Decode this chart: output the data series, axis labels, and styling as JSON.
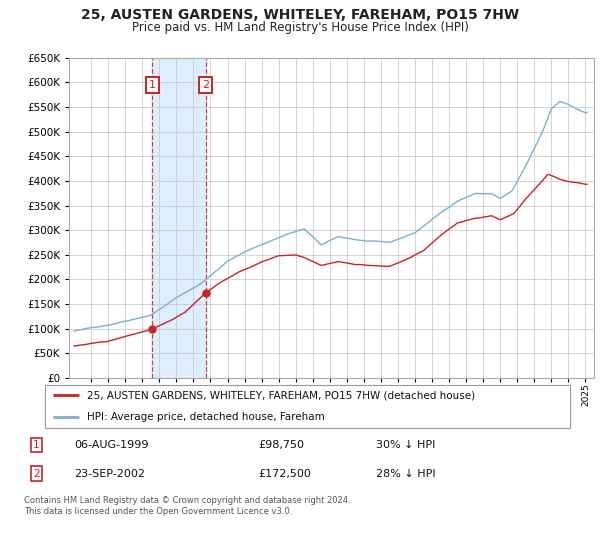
{
  "title": "25, AUSTEN GARDENS, WHITELEY, FAREHAM, PO15 7HW",
  "subtitle": "Price paid vs. HM Land Registry's House Price Index (HPI)",
  "property_label": "25, AUSTEN GARDENS, WHITELEY, FAREHAM, PO15 7HW (detached house)",
  "hpi_label": "HPI: Average price, detached house, Fareham",
  "purchase1_date": 1999.59,
  "purchase1_price": 98750,
  "purchase2_date": 2002.72,
  "purchase2_price": 172500,
  "footer": "Contains HM Land Registry data © Crown copyright and database right 2024.\nThis data is licensed under the Open Government Licence v3.0.",
  "ylim": [
    0,
    650000
  ],
  "xlim": [
    1994.7,
    2025.5
  ],
  "yticks": [
    0,
    50000,
    100000,
    150000,
    200000,
    250000,
    300000,
    350000,
    400000,
    450000,
    500000,
    550000,
    600000,
    650000
  ],
  "background_color": "#ffffff",
  "grid_color": "#cccccc",
  "hpi_color": "#7bafd4",
  "property_color": "#cc2222",
  "shade_color": "#ddeeff",
  "hpi_anchors_x": [
    1995.0,
    1997.0,
    1999.5,
    2001.0,
    2002.5,
    2004.0,
    2005.0,
    2007.5,
    2008.5,
    2009.5,
    2010.5,
    2012.0,
    2013.5,
    2015.0,
    2016.5,
    2017.5,
    2018.5,
    2019.5,
    2020.0,
    2020.7,
    2021.5,
    2022.5,
    2023.0,
    2023.5,
    2024.0,
    2024.5,
    2025.0
  ],
  "hpi_anchors_y": [
    95000,
    108000,
    130000,
    165000,
    195000,
    240000,
    258000,
    295000,
    305000,
    272000,
    288000,
    280000,
    275000,
    295000,
    335000,
    360000,
    375000,
    375000,
    365000,
    380000,
    430000,
    500000,
    545000,
    560000,
    555000,
    545000,
    538000
  ],
  "prop_anchors_x": [
    1995.0,
    1997.0,
    1999.59,
    2000.5,
    2001.5,
    2002.72,
    2003.5,
    2004.5,
    2006.0,
    2007.0,
    2008.0,
    2008.5,
    2009.5,
    2010.5,
    2011.5,
    2012.5,
    2013.5,
    2014.5,
    2015.5,
    2016.5,
    2017.5,
    2018.5,
    2019.5,
    2020.0,
    2020.8,
    2021.5,
    2022.3,
    2022.8,
    2023.5,
    2024.0,
    2024.5,
    2025.0
  ],
  "prop_anchors_y": [
    65000,
    74000,
    98750,
    112000,
    132000,
    172500,
    192000,
    212000,
    235000,
    248000,
    250000,
    245000,
    230000,
    238000,
    232000,
    230000,
    228000,
    242000,
    260000,
    290000,
    315000,
    325000,
    330000,
    322000,
    335000,
    365000,
    395000,
    415000,
    405000,
    400000,
    398000,
    395000
  ]
}
